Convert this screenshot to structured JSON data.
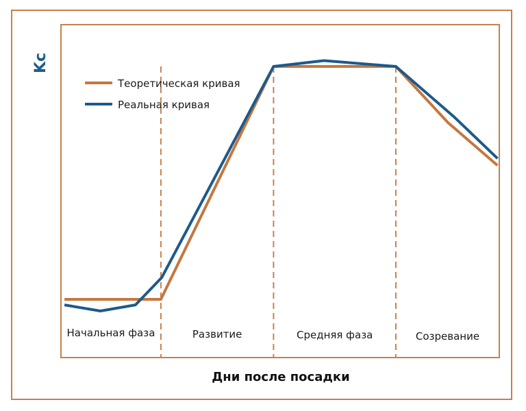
{
  "chart_data": {
    "type": "line",
    "title": "",
    "xlabel": "Дни после посадки",
    "ylabel": "Kc",
    "xlim": [
      0,
      100
    ],
    "ylim": [
      0,
      100
    ],
    "grid": false,
    "legend_position": "top-left",
    "phases": [
      "Начальная фаза",
      "Развитие",
      "Средняя фаза",
      "Созревание"
    ],
    "phase_boundaries": [
      22.8,
      48.5,
      76.4
    ],
    "series": [
      {
        "name": "Теоретическая кривая",
        "color": "#c5773f",
        "x": [
          0.8,
          22.8,
          48.5,
          76.4,
          88.3,
          99.6
        ],
        "y": [
          20.0,
          20.0,
          100.0,
          100.0,
          80.7,
          66.0
        ]
      },
      {
        "name": "Реальная кривая",
        "color": "#1c5a8c",
        "x": [
          0.8,
          9.0,
          17.0,
          23.0,
          48.5,
          60.0,
          76.4,
          89.6,
          99.6
        ],
        "y": [
          18.1,
          16.0,
          18.1,
          27.5,
          100.0,
          102.0,
          100.0,
          82.8,
          68.4
        ]
      }
    ]
  },
  "colors": {
    "frame": "#c8804a",
    "theoretical": "#c5773f",
    "real": "#1c5a8c",
    "ylabel": "#1f5d8c"
  }
}
